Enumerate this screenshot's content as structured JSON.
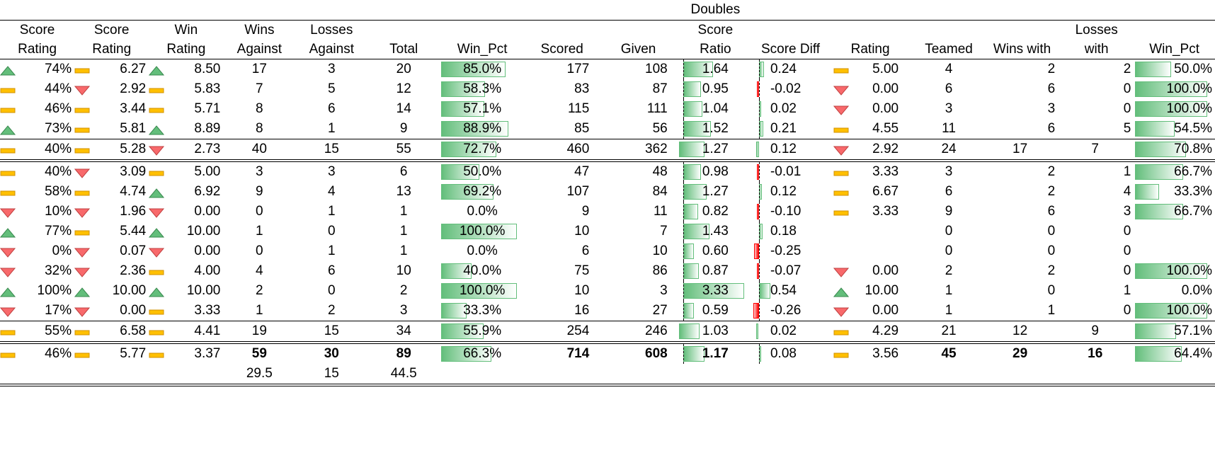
{
  "colors": {
    "green": "#63be7b",
    "red": "#ff0000",
    "yellow": "#ffc000",
    "up": "#63be7b",
    "down": "#f8696b"
  },
  "header": {
    "group_label": "Doubles",
    "cols": [
      [
        "Score",
        "Rating"
      ],
      [
        "Score",
        "Rating"
      ],
      [
        "Win",
        "Rating"
      ],
      [
        "Wins",
        "Against"
      ],
      [
        "Losses",
        "Against"
      ],
      [
        "",
        "Total"
      ],
      [
        "",
        "Win_Pct"
      ],
      [
        "",
        "Scored"
      ],
      [
        "",
        "Given"
      ],
      [
        "Score",
        "Ratio"
      ],
      [
        "",
        "Score Diff"
      ],
      [
        "",
        "Rating"
      ],
      [
        "",
        "Teamed"
      ],
      [
        "",
        "Wins with"
      ],
      [
        "Losses",
        "with"
      ],
      [
        "",
        "Win_Pct"
      ]
    ]
  },
  "rows": [
    {
      "grp": "a",
      "i1": "up",
      "v1": "74%",
      "i2": "flat",
      "v2": "6.27",
      "i3": "up",
      "v3": "8.50",
      "wa": "17",
      "la": "3",
      "tot": "20",
      "wp": "85.0%",
      "wpf": 0.85,
      "sc": "177",
      "gv": "108",
      "sr": "1.64",
      "srf": 1.64,
      "sd": "0.24",
      "sdf": 0.24,
      "i4": "flat",
      "r": "5.00",
      "tm": "4",
      "ww": "2",
      "lw": "2",
      "wp2": "50.0%",
      "wp2f": 0.5
    },
    {
      "grp": "a",
      "i1": "flat",
      "v1": "44%",
      "i2": "down",
      "v2": "2.92",
      "i3": "flat",
      "v3": "5.83",
      "wa": "7",
      "la": "5",
      "tot": "12",
      "wp": "58.3%",
      "wpf": 0.583,
      "sc": "83",
      "gv": "87",
      "sr": "0.95",
      "srf": 0.95,
      "sd": "-0.02",
      "sdf": -0.02,
      "i4": "down",
      "r": "0.00",
      "tm": "6",
      "ww": "6",
      "lw": "0",
      "wp2": "100.0%",
      "wp2f": 1.0
    },
    {
      "grp": "a",
      "i1": "flat",
      "v1": "46%",
      "i2": "flat",
      "v2": "3.44",
      "i3": "flat",
      "v3": "5.71",
      "wa": "8",
      "la": "6",
      "tot": "14",
      "wp": "57.1%",
      "wpf": 0.571,
      "sc": "115",
      "gv": "111",
      "sr": "1.04",
      "srf": 1.04,
      "sd": "0.02",
      "sdf": 0.02,
      "i4": "down",
      "r": "0.00",
      "tm": "3",
      "ww": "3",
      "lw": "0",
      "wp2": "100.0%",
      "wp2f": 1.0
    },
    {
      "grp": "a",
      "i1": "up",
      "v1": "73%",
      "i2": "flat",
      "v2": "5.81",
      "i3": "up",
      "v3": "8.89",
      "wa": "8",
      "la": "1",
      "tot": "9",
      "wp": "88.9%",
      "wpf": 0.889,
      "sc": "85",
      "gv": "56",
      "sr": "1.52",
      "srf": 1.52,
      "sd": "0.21",
      "sdf": 0.21,
      "i4": "flat",
      "r": "4.55",
      "tm": "11",
      "ww": "6",
      "lw": "5",
      "wp2": "54.5%",
      "wp2f": 0.545
    },
    {
      "grp": "sub1",
      "i1": "flat",
      "v1": "40%",
      "i2": "flat",
      "v2": "5.28",
      "i3": "down",
      "v3": "2.73",
      "wa": "40",
      "la": "15",
      "tot": "55",
      "wp": "72.7%",
      "wpf": 0.727,
      "sc": "460",
      "gv": "362",
      "sr": "1.27",
      "srf": 1.27,
      "sd": "0.12",
      "sdf": 0.12,
      "i4": "down",
      "r": "2.92",
      "tm": "24",
      "ww": "17",
      "lw": "7",
      "wp2": "70.8%",
      "wp2f": 0.708
    },
    {
      "grp": "b",
      "i1": "flat",
      "v1": "40%",
      "i2": "down",
      "v2": "3.09",
      "i3": "flat",
      "v3": "5.00",
      "wa": "3",
      "la": "3",
      "tot": "6",
      "wp": "50.0%",
      "wpf": 0.5,
      "sc": "47",
      "gv": "48",
      "sr": "0.98",
      "srf": 0.98,
      "sd": "-0.01",
      "sdf": -0.01,
      "i4": "flat",
      "r": "3.33",
      "tm": "3",
      "ww": "2",
      "lw": "1",
      "wp2": "66.7%",
      "wp2f": 0.667
    },
    {
      "grp": "b",
      "i1": "flat",
      "v1": "58%",
      "i2": "flat",
      "v2": "4.74",
      "i3": "up",
      "v3": "6.92",
      "wa": "9",
      "la": "4",
      "tot": "13",
      "wp": "69.2%",
      "wpf": 0.692,
      "sc": "107",
      "gv": "84",
      "sr": "1.27",
      "srf": 1.27,
      "sd": "0.12",
      "sdf": 0.12,
      "i4": "flat",
      "r": "6.67",
      "tm": "6",
      "ww": "2",
      "lw": "4",
      "wp2": "33.3%",
      "wp2f": 0.333
    },
    {
      "grp": "b",
      "i1": "down",
      "v1": "10%",
      "i2": "down",
      "v2": "1.96",
      "i3": "down",
      "v3": "0.00",
      "wa": "0",
      "la": "1",
      "tot": "1",
      "wp": "0.0%",
      "wpf": 0,
      "sc": "9",
      "gv": "11",
      "sr": "0.82",
      "srf": 0.82,
      "sd": "-0.10",
      "sdf": -0.1,
      "i4": "flat",
      "r": "3.33",
      "tm": "9",
      "ww": "6",
      "lw": "3",
      "wp2": "66.7%",
      "wp2f": 0.667
    },
    {
      "grp": "b",
      "i1": "up",
      "v1": "77%",
      "i2": "flat",
      "v2": "5.44",
      "i3": "up",
      "v3": "10.00",
      "wa": "1",
      "la": "0",
      "tot": "1",
      "wp": "100.0%",
      "wpf": 1.0,
      "sc": "10",
      "gv": "7",
      "sr": "1.43",
      "srf": 1.43,
      "sd": "0.18",
      "sdf": 0.18,
      "i4": "",
      "r": "",
      "tm": "0",
      "ww": "0",
      "lw": "0",
      "wp2": "",
      "wp2f": 0
    },
    {
      "grp": "b",
      "i1": "down",
      "v1": "0%",
      "i2": "down",
      "v2": "0.07",
      "i3": "down",
      "v3": "0.00",
      "wa": "0",
      "la": "1",
      "tot": "1",
      "wp": "0.0%",
      "wpf": 0,
      "sc": "6",
      "gv": "10",
      "sr": "0.60",
      "srf": 0.6,
      "sd": "-0.25",
      "sdf": -0.25,
      "i4": "",
      "r": "",
      "tm": "0",
      "ww": "0",
      "lw": "0",
      "wp2": "",
      "wp2f": 0
    },
    {
      "grp": "b",
      "i1": "down",
      "v1": "32%",
      "i2": "down",
      "v2": "2.36",
      "i3": "flat",
      "v3": "4.00",
      "wa": "4",
      "la": "6",
      "tot": "10",
      "wp": "40.0%",
      "wpf": 0.4,
      "sc": "75",
      "gv": "86",
      "sr": "0.87",
      "srf": 0.87,
      "sd": "-0.07",
      "sdf": -0.07,
      "i4": "down",
      "r": "0.00",
      "tm": "2",
      "ww": "2",
      "lw": "0",
      "wp2": "100.0%",
      "wp2f": 1.0
    },
    {
      "grp": "b",
      "i1": "up",
      "v1": "100%",
      "i2": "up",
      "v2": "10.00",
      "i3": "up",
      "v3": "10.00",
      "wa": "2",
      "la": "0",
      "tot": "2",
      "wp": "100.0%",
      "wpf": 1.0,
      "sc": "10",
      "gv": "3",
      "sr": "3.33",
      "srf": 3.33,
      "sd": "0.54",
      "sdf": 0.54,
      "i4": "up",
      "r": "10.00",
      "tm": "1",
      "ww": "0",
      "lw": "1",
      "wp2": "0.0%",
      "wp2f": 0
    },
    {
      "grp": "b",
      "i1": "down",
      "v1": "17%",
      "i2": "down",
      "v2": "0.00",
      "i3": "flat",
      "v3": "3.33",
      "wa": "1",
      "la": "2",
      "tot": "3",
      "wp": "33.3%",
      "wpf": 0.333,
      "sc": "16",
      "gv": "27",
      "sr": "0.59",
      "srf": 0.59,
      "sd": "-0.26",
      "sdf": -0.26,
      "i4": "down",
      "r": "0.00",
      "tm": "1",
      "ww": "1",
      "lw": "0",
      "wp2": "100.0%",
      "wp2f": 1.0
    },
    {
      "grp": "sub2",
      "i1": "flat",
      "v1": "55%",
      "i2": "flat",
      "v2": "6.58",
      "i3": "flat",
      "v3": "4.41",
      "wa": "19",
      "la": "15",
      "tot": "34",
      "wp": "55.9%",
      "wpf": 0.559,
      "sc": "254",
      "gv": "246",
      "sr": "1.03",
      "srf": 1.03,
      "sd": "0.02",
      "sdf": 0.02,
      "i4": "flat",
      "r": "4.29",
      "tm": "21",
      "ww": "12",
      "lw": "9",
      "wp2": "57.1%",
      "wp2f": 0.571
    },
    {
      "grp": "total",
      "i1": "flat",
      "v1": "46%",
      "i2": "flat",
      "v2": "5.77",
      "i3": "flat",
      "v3": "3.37",
      "wa": "59",
      "la": "30",
      "tot": "89",
      "wp": "66.3%",
      "wpf": 0.663,
      "sc": "714",
      "gv": "608",
      "sr": "1.17",
      "srf": 1.17,
      "sd": "0.08",
      "sdf": 0.08,
      "i4": "flat",
      "r": "3.56",
      "tm": "45",
      "ww": "29",
      "lw": "16",
      "wp2": "64.4%",
      "wp2f": 0.644
    }
  ],
  "footer": {
    "wa": "29.5",
    "la": "15",
    "tot": "44.5"
  }
}
